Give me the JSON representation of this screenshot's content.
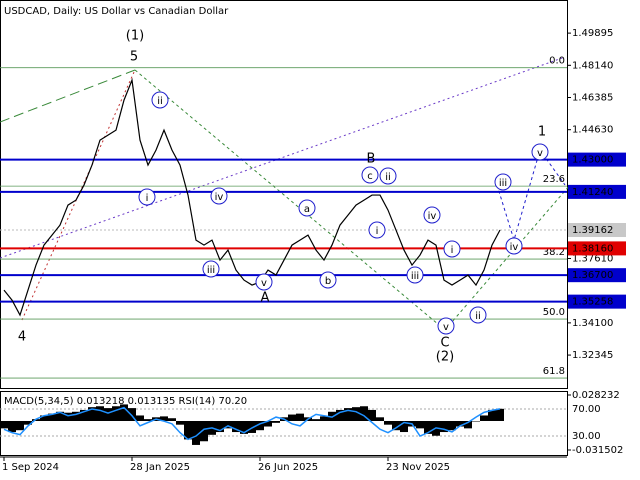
{
  "chart_data": {
    "type": "line",
    "title": "USDCAD, Daily:  US Dollar vs Canadian Dollar",
    "color": "#000000",
    "categories": [
      "1 Sep 2024",
      null,
      null,
      null,
      null,
      null,
      null,
      null,
      null,
      null,
      null,
      null,
      null,
      null,
      null,
      null,
      "28 Jan 2025",
      null,
      null,
      null,
      null,
      null,
      null,
      null,
      null,
      null,
      null,
      null,
      null,
      null,
      null,
      null,
      "26 Jun 2025",
      null,
      null,
      null,
      null,
      null,
      null,
      null,
      null,
      null,
      null,
      null,
      null,
      null,
      null,
      null,
      "23 Nov 2025",
      null,
      null,
      null,
      null,
      null,
      null,
      null,
      null,
      null,
      null,
      null,
      null,
      null,
      null
    ],
    "values": [
      1.35888,
      1.35343,
      1.34526,
      1.35888,
      1.37251,
      1.38341,
      1.38886,
      1.39431,
      1.40521,
      1.40793,
      1.41611,
      1.42701,
      1.44063,
      1.44336,
      1.44608,
      1.46243,
      1.47333,
      1.44063,
      1.42701,
      1.43518,
      1.44608,
      1.43518,
      1.42701,
      1.41066,
      1.38613,
      1.38341,
      1.38613,
      1.37523,
      1.38068,
      1.36978,
      1.36433,
      1.36161,
      1.36324,
      1.36978,
      1.36706,
      1.37523,
      1.38341,
      1.38613,
      1.38886,
      1.38068,
      1.37523,
      1.38341,
      1.39431,
      1.39976,
      1.40521,
      1.40793,
      1.41066,
      1.41066,
      1.40248,
      1.39158,
      1.38068,
      1.37251,
      1.37796,
      1.38613,
      1.38341,
      1.36433,
      1.36161,
      1.36433,
      1.36706,
      1.36161,
      1.36978,
      1.38341,
      1.39162
    ],
    "ylim": [
      1.3055,
      1.517
    ],
    "yticks": [
      {
        "value": 1.49895,
        "label": "1.49895"
      },
      {
        "value": 1.4814,
        "label": "1.48140"
      },
      {
        "value": 1.46385,
        "label": "1.46385"
      },
      {
        "value": 1.4463,
        "label": "1.44630"
      },
      {
        "value": 1.3761,
        "label": "1.37610"
      },
      {
        "value": 1.341,
        "label": "1.34100"
      },
      {
        "value": 1.32345,
        "label": "1.32345"
      }
    ],
    "levels": [
      {
        "value": 1.43,
        "label": "1.43000",
        "color": "#0000cc"
      },
      {
        "value": 1.4124,
        "label": "1.41240",
        "color": "#0000cc"
      },
      {
        "value": 1.3816,
        "label": "1.38160",
        "color": "#e00000"
      },
      {
        "value": 1.367,
        "label": "1.36700",
        "color": "#0000cc"
      },
      {
        "value": 1.35258,
        "label": "1.35258",
        "color": "#0000cc"
      }
    ],
    "current_price": {
      "value": 1.39162,
      "label": "1.39162",
      "color": "#c8c8c8"
    },
    "fibonacci": {
      "color": "#5a9a5a",
      "levels": [
        {
          "value": 1.4801,
          "label": "0.0"
        },
        {
          "value": 1.41556,
          "label": "23.6"
        },
        {
          "value": 1.37578,
          "label": "38.2"
        },
        {
          "value": 1.34308,
          "label": "50.0"
        },
        {
          "value": 1.31092,
          "label": "61.8"
        }
      ]
    },
    "annotations": [
      {
        "text": "(1)",
        "color": "#3a8a3a",
        "circled": false
      },
      {
        "text": "5",
        "color": "#a52a2a",
        "circled": false
      },
      {
        "text": "ii",
        "color": "#1f1fcc",
        "circled": true
      },
      {
        "text": "i",
        "color": "#1f1fcc",
        "circled": true
      },
      {
        "text": "iv",
        "color": "#1f1fcc",
        "circled": true
      },
      {
        "text": "iii",
        "color": "#1f1fcc",
        "circled": true
      },
      {
        "text": "v",
        "color": "#1f1fcc",
        "circled": true
      },
      {
        "text": "A",
        "color": "#a52a2a",
        "circled": false
      },
      {
        "text": "a",
        "color": "#1f1fcc",
        "circled": true
      },
      {
        "text": "b",
        "color": "#1f1fcc",
        "circled": true
      },
      {
        "text": "B",
        "color": "#a52a2a",
        "circled": false
      },
      {
        "text": "c",
        "color": "#1f1fcc",
        "circled": true
      },
      {
        "text": "ii",
        "color": "#1f1fcc",
        "circled": true
      },
      {
        "text": "i",
        "color": "#1f1fcc",
        "circled": true
      },
      {
        "text": "iv",
        "color": "#1f1fcc",
        "circled": true
      },
      {
        "text": "i",
        "color": "#1f1fcc",
        "circled": true
      },
      {
        "text": "iii",
        "color": "#1f1fcc",
        "circled": true
      },
      {
        "text": "v",
        "color": "#1f1fcc",
        "circled": true
      },
      {
        "text": "C",
        "color": "#a52a2a",
        "circled": false
      },
      {
        "text": "(2)",
        "color": "#3a8a3a",
        "circled": false
      },
      {
        "text": "ii",
        "color": "#1f1fcc",
        "circled": true
      },
      {
        "text": "4",
        "color": "#a52a2a",
        "circled": false
      },
      {
        "text": "1",
        "color": "#a52a2a",
        "circled": false
      },
      {
        "text": "v",
        "color": "#1f1fcc",
        "circled": true
      },
      {
        "text": "iii",
        "color": "#1f1fcc",
        "circled": true
      },
      {
        "text": "iv",
        "color": "#1f1fcc",
        "circled": true
      }
    ],
    "indicator": {
      "legend": "MACD(5,34,5) 0.013218 0.013135 RSI(14) 70.20",
      "macd_color": "#000000",
      "rsi_color": "#1e90ff",
      "macd_values": [
        -0.008,
        -0.012,
        -0.01,
        -0.004,
        0.002,
        0.006,
        0.008,
        0.01,
        0.009,
        0.01,
        0.012,
        0.015,
        0.016,
        0.014,
        0.016,
        0.018,
        0.014,
        0.006,
        0.002,
        0.004,
        0.005,
        0.003,
        -0.004,
        -0.02,
        -0.026,
        -0.022,
        -0.015,
        -0.012,
        -0.008,
        -0.012,
        -0.014,
        -0.013,
        -0.01,
        -0.006,
        -0.002,
        0.004,
        0.007,
        0.008,
        0.004,
        0.002,
        0.005,
        0.01,
        0.012,
        0.014,
        0.015,
        0.016,
        0.012,
        0.004,
        -0.004,
        -0.01,
        -0.012,
        -0.006,
        -0.008,
        -0.014,
        -0.016,
        -0.012,
        -0.01,
        -0.006,
        -0.008,
        0.0,
        0.006,
        0.012,
        0.013218
      ],
      "rsi_values": [
        40,
        35,
        32,
        45,
        55,
        60,
        62,
        65,
        60,
        62,
        66,
        70,
        68,
        64,
        68,
        72,
        60,
        45,
        50,
        55,
        52,
        48,
        35,
        25,
        30,
        40,
        42,
        38,
        45,
        40,
        35,
        42,
        48,
        52,
        58,
        55,
        48,
        45,
        55,
        62,
        60,
        58,
        65,
        68,
        66,
        60,
        50,
        40,
        35,
        42,
        50,
        48,
        30,
        35,
        42,
        40,
        36,
        45,
        50,
        58,
        65,
        68,
        70.2
      ],
      "ylim": [
        -0.031502,
        0.028232
      ],
      "yticks": [
        {
          "value": 0.028232,
          "label": "0.028232"
        },
        {
          "value": -0.031502,
          "label": "-0.031502"
        }
      ],
      "y2lim": [
        9.3,
        90.7
      ],
      "y2ticks": [
        {
          "value": 70,
          "label": "70.00"
        },
        {
          "value": 30,
          "label": "30.00"
        }
      ]
    }
  }
}
